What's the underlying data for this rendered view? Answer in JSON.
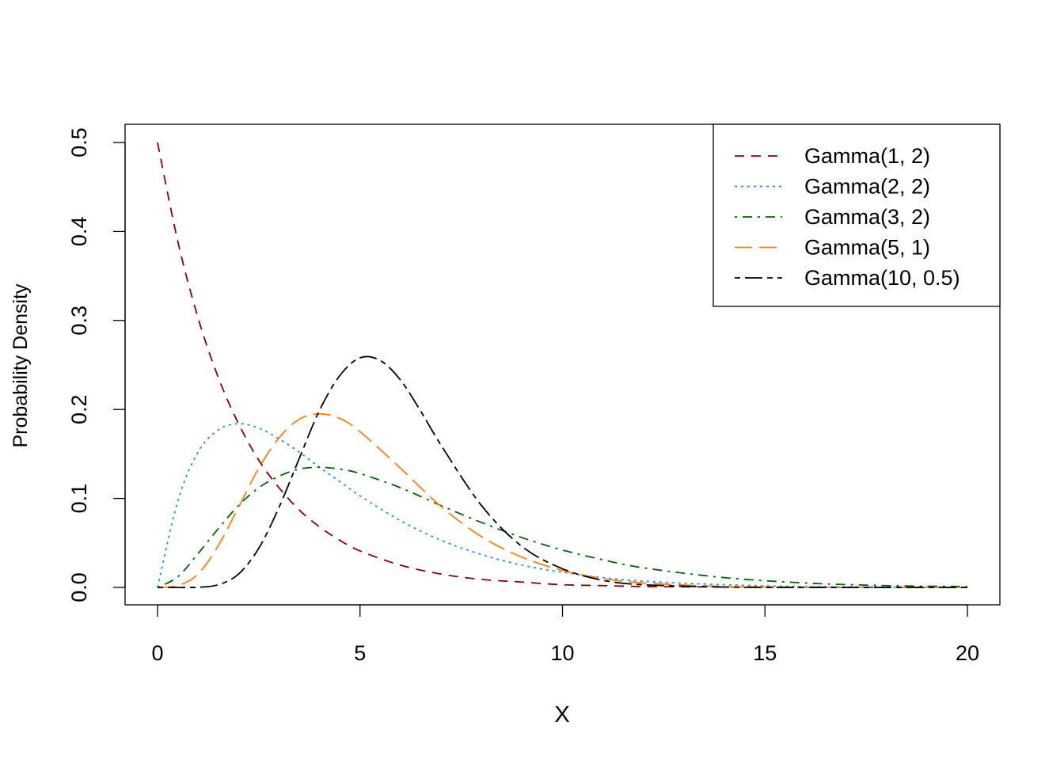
{
  "chart_data": {
    "type": "line",
    "xlabel": "X",
    "ylabel": "Probability Density",
    "xlim": [
      0,
      20
    ],
    "ylim": [
      0,
      0.5
    ],
    "x_ticks": [
      "0",
      "5",
      "10",
      "15",
      "20"
    ],
    "y_ticks": [
      "0.0",
      "0.1",
      "0.2",
      "0.3",
      "0.4",
      "0.5"
    ],
    "grid": false,
    "legend_position": "top-right",
    "series": [
      {
        "name": "Gamma(1, 2)",
        "color": "#8B0000",
        "line_style": "dashed",
        "x": [
          0,
          0.5,
          1,
          1.5,
          2,
          2.5,
          3,
          3.5,
          4,
          4.5,
          5,
          6,
          7,
          8,
          9,
          10,
          11,
          12,
          14,
          16,
          18,
          20
        ],
        "y": [
          0.5,
          0.389,
          0.303,
          0.236,
          0.184,
          0.143,
          0.112,
          0.087,
          0.068,
          0.053,
          0.041,
          0.025,
          0.015,
          0.009,
          0.006,
          0.003,
          0.002,
          0.001,
          0.0005,
          0.0002,
          0.0001,
          0.0
        ]
      },
      {
        "name": "Gamma(2, 2)",
        "color": "#1E90FF",
        "line_style": "dotted",
        "x": [
          0,
          0.5,
          1,
          1.5,
          2,
          2.5,
          3,
          3.5,
          4,
          4.5,
          5,
          6,
          7,
          8,
          9,
          10,
          11,
          12,
          14,
          16,
          18,
          20
        ],
        "y": [
          0.0,
          0.097,
          0.152,
          0.177,
          0.184,
          0.179,
          0.167,
          0.152,
          0.135,
          0.119,
          0.103,
          0.075,
          0.053,
          0.037,
          0.025,
          0.017,
          0.011,
          0.007,
          0.003,
          0.001,
          0.0005,
          0.0002
        ]
      },
      {
        "name": "Gamma(3, 2)",
        "color": "#006400",
        "line_style": "dotdash",
        "x": [
          0,
          0.5,
          1,
          1.5,
          2,
          2.5,
          3,
          3.5,
          4,
          4.5,
          5,
          6,
          7,
          8,
          9,
          10,
          11,
          12,
          14,
          16,
          18,
          20
        ],
        "y": [
          0.0,
          0.012,
          0.038,
          0.066,
          0.092,
          0.112,
          0.125,
          0.133,
          0.135,
          0.133,
          0.128,
          0.112,
          0.092,
          0.073,
          0.056,
          0.042,
          0.031,
          0.022,
          0.011,
          0.005,
          0.002,
          0.001
        ]
      },
      {
        "name": "Gamma(5, 1)",
        "color": "#FF7F0E",
        "line_style": "longdash",
        "x": [
          0,
          0.5,
          1,
          1.5,
          2,
          2.5,
          3,
          3.5,
          4,
          4.5,
          5,
          6,
          7,
          8,
          9,
          10,
          11,
          12,
          14,
          16,
          18,
          20
        ],
        "y": [
          0.0,
          0.002,
          0.015,
          0.047,
          0.09,
          0.134,
          0.168,
          0.189,
          0.195,
          0.19,
          0.175,
          0.134,
          0.091,
          0.057,
          0.034,
          0.019,
          0.01,
          0.005,
          0.001,
          0.0003,
          0.0001,
          0.0
        ]
      },
      {
        "name": "Gamma(10, 0.5)",
        "color": "#000000",
        "line_style": "twodash",
        "x": [
          0,
          0.5,
          1,
          1.5,
          2,
          2.5,
          3,
          3.5,
          4,
          4.5,
          5,
          5.5,
          6,
          6.5,
          7,
          8,
          9,
          10,
          11,
          12,
          14,
          16,
          18,
          20
        ],
        "y": [
          0.0,
          0.0,
          0.0002,
          0.003,
          0.015,
          0.044,
          0.09,
          0.145,
          0.199,
          0.238,
          0.258,
          0.255,
          0.233,
          0.198,
          0.16,
          0.092,
          0.046,
          0.021,
          0.008,
          0.003,
          0.0004,
          0.0,
          0.0,
          0.0
        ]
      }
    ]
  }
}
